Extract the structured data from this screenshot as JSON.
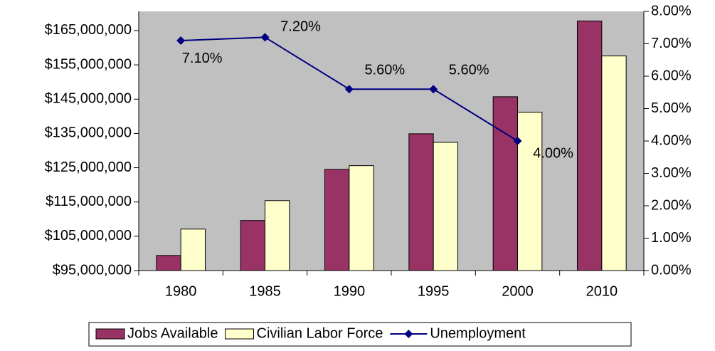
{
  "chart_data": {
    "type": "bar-line",
    "categories": [
      "1980",
      "1985",
      "1990",
      "1995",
      "2000",
      "2010"
    ],
    "series": [
      {
        "name": "Jobs Available",
        "color": "#993366",
        "values": [
          99400000,
          109600000,
          124500000,
          134900000,
          145700000,
          167800000
        ]
      },
      {
        "name": "Civilian Labor Force",
        "color": "#ffffcc",
        "values": [
          107100000,
          115400000,
          125600000,
          132400000,
          141200000,
          157600000
        ]
      },
      {
        "name": "Unemployment",
        "color": "#000080",
        "axis": "y2",
        "values": [
          7.1,
          7.2,
          5.6,
          5.6,
          4.0,
          null
        ],
        "value_labels": [
          "7.10%",
          "7.20%",
          "5.60%",
          "5.60%",
          "4.00%",
          null
        ]
      }
    ],
    "ylim": [
      95000000,
      170600000
    ],
    "yticks": [
      {
        "value": 95000000,
        "label": "$95,000,000"
      },
      {
        "value": 105000000,
        "label": "$105,000,000"
      },
      {
        "value": 115000000,
        "label": "$115,000,000"
      },
      {
        "value": 125000000,
        "label": "$125,000,000"
      },
      {
        "value": 135000000,
        "label": "$135,000,000"
      },
      {
        "value": 145000000,
        "label": "$145,000,000"
      },
      {
        "value": 155000000,
        "label": "$155,000,000"
      },
      {
        "value": 165000000,
        "label": "$165,000,000"
      }
    ],
    "y2lim": [
      0,
      8
    ],
    "y2ticks": [
      {
        "value": 0,
        "label": "0.00%"
      },
      {
        "value": 1,
        "label": "1.00%"
      },
      {
        "value": 2,
        "label": "2.00%"
      },
      {
        "value": 3,
        "label": "3.00%"
      },
      {
        "value": 4,
        "label": "4.00%"
      },
      {
        "value": 5,
        "label": "5.00%"
      },
      {
        "value": 6,
        "label": "6.00%"
      },
      {
        "value": 7,
        "label": "7.00%"
      },
      {
        "value": 8,
        "label": "8.00%"
      }
    ],
    "plot_background": "#c0c0c0",
    "legend": "bottom"
  }
}
